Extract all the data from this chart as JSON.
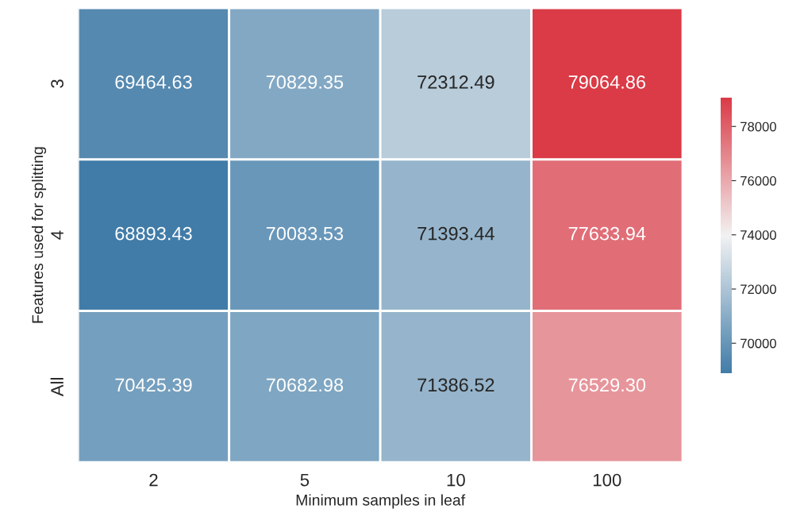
{
  "chart_data": {
    "type": "heatmap",
    "xlabel": "Minimum samples in leaf",
    "ylabel": "Features used for splitting",
    "categories": [
      "2",
      "5",
      "10",
      "100"
    ],
    "y_categories": [
      "3",
      "4",
      "All"
    ],
    "cells": [
      [
        69464.63,
        70829.35,
        72312.49,
        79064.86
      ],
      [
        68893.43,
        70083.53,
        71393.44,
        77633.94
      ],
      [
        70425.39,
        70682.98,
        71386.52,
        76529.3
      ]
    ],
    "cell_labels": [
      [
        "69464.63",
        "70829.35",
        "72312.49",
        "79064.86"
      ],
      [
        "68893.43",
        "70083.53",
        "71393.44",
        "77633.94"
      ],
      [
        "70425.39",
        "70682.98",
        "71386.52",
        "76529.30"
      ]
    ],
    "clim": [
      68893.43,
      79064.86
    ],
    "cticks": [
      70000,
      72000,
      74000,
      76000,
      78000
    ],
    "data_labels": true
  }
}
